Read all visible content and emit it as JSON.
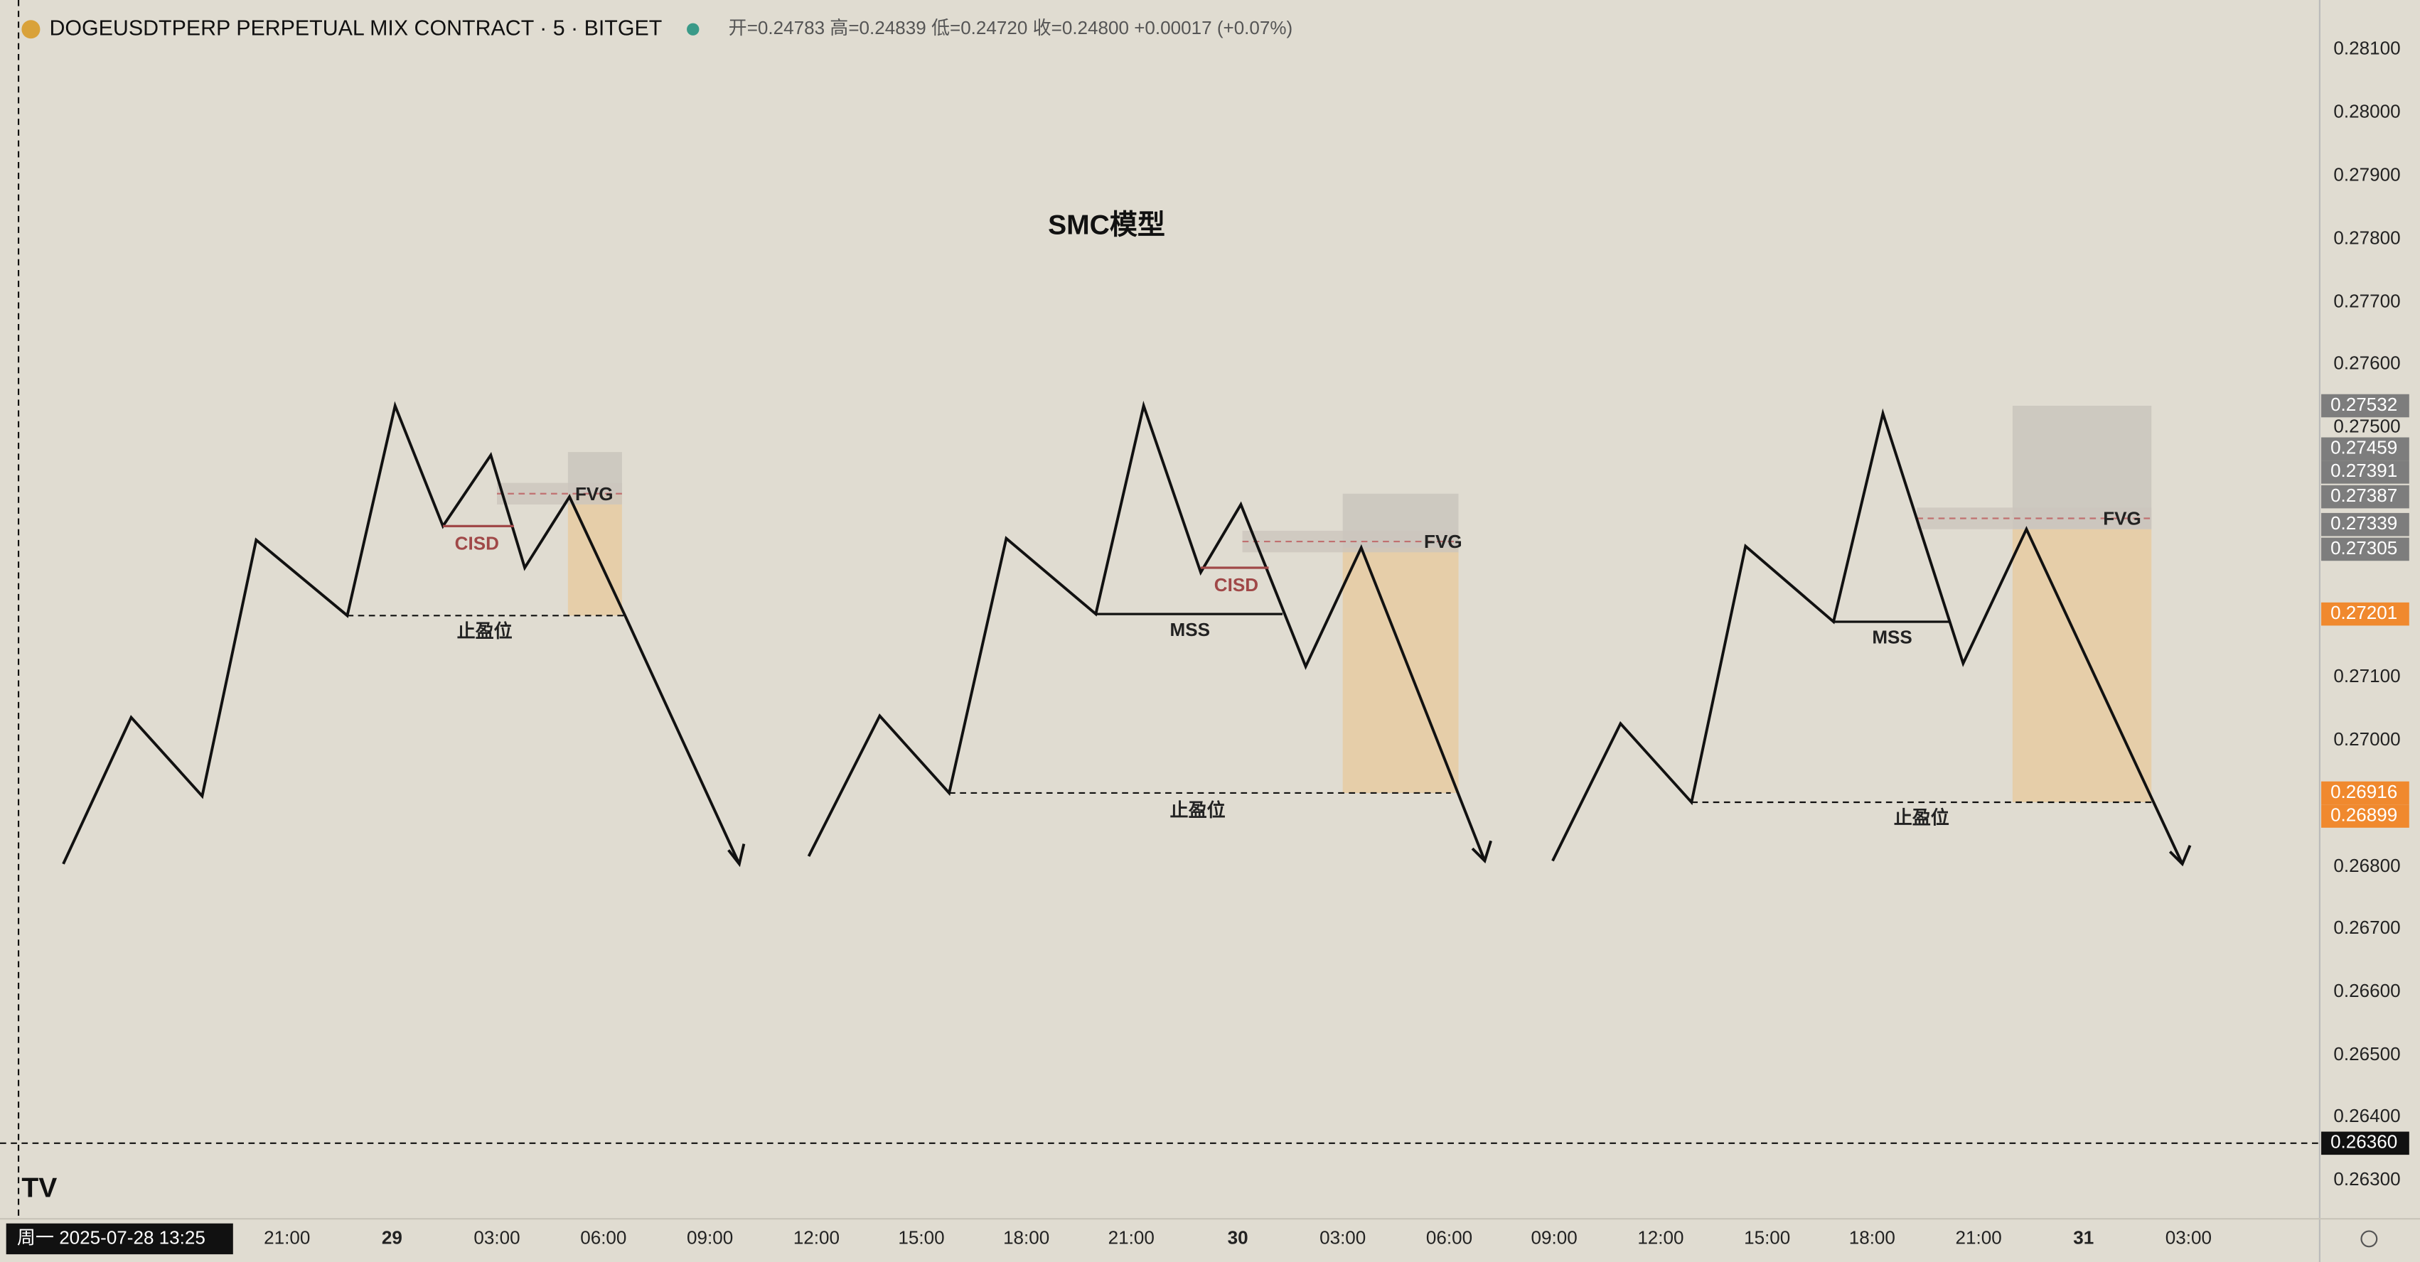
{
  "header": {
    "symbol": "DOGEUSDTPERP PERPETUAL MIX CONTRACT · 5 · BITGET",
    "ohlc": "开=0.24783 高=0.24839 低=0.24720 收=0.24800 +0.00017 (+0.07%)"
  },
  "title": "SMC模型",
  "annotations": [
    "CISD",
    "FVG",
    "止盈位",
    "CISD",
    "MSS",
    "FVG",
    "止盈位",
    "MSS",
    "FVG",
    "止盈位"
  ],
  "price_axis": [
    "0.28100",
    "0.28000",
    "0.27900",
    "0.27800",
    "0.27700",
    "0.27600",
    "0.27500",
    "0.27100",
    "0.27000",
    "0.26800",
    "0.26700",
    "0.26600",
    "0.26500",
    "0.26400",
    "0.26300"
  ],
  "price_badges": [
    "0.27532",
    "0.27459",
    "0.27391",
    "0.27387",
    "0.27339",
    "0.27305",
    "0.27201",
    "0.26916",
    "0.26899",
    "0.26360"
  ],
  "time_badge": "周一 2025-07-28   13:25",
  "time_axis": [
    "21:00",
    "29",
    "03:00",
    "06:00",
    "09:00",
    "12:00",
    "15:00",
    "18:00",
    "21:00",
    "30",
    "03:00",
    "06:00",
    "09:00",
    "12:00",
    "15:00",
    "18:00",
    "21:00",
    "31",
    "03:00"
  ]
}
